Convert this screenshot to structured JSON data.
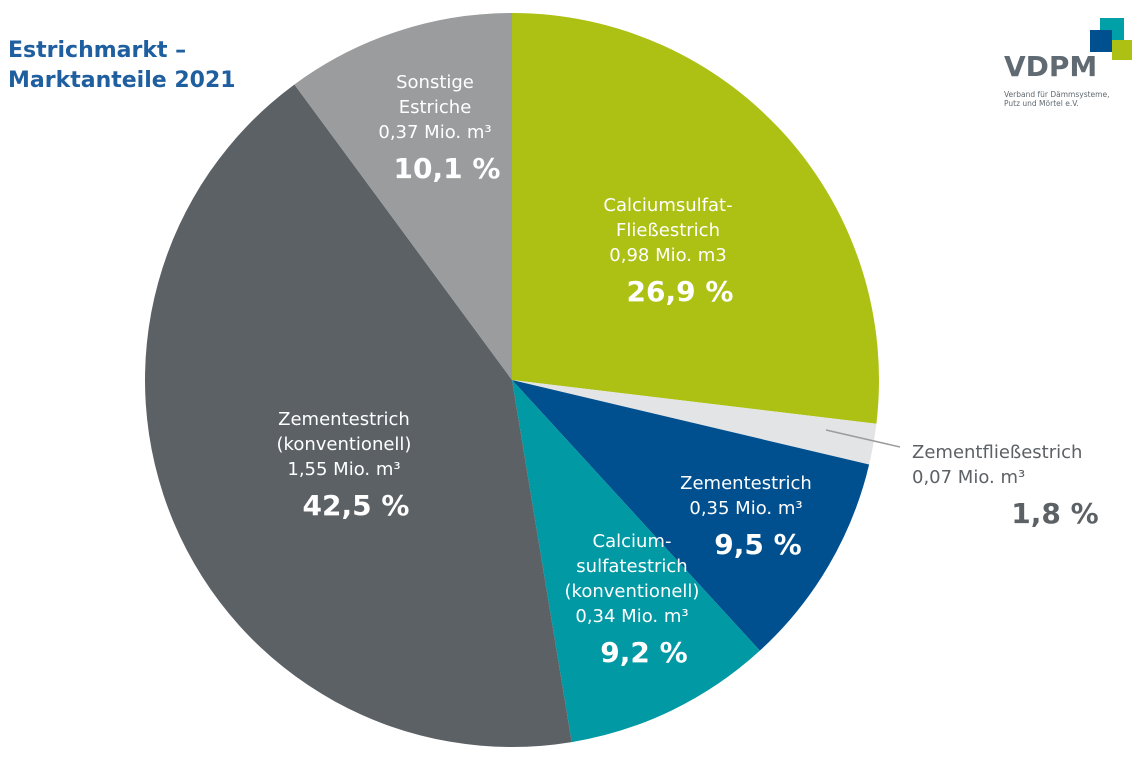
{
  "title": [
    "Estrichmarkt –",
    "Marktanteile 2021"
  ],
  "logo": {
    "name": "VDPM",
    "subtitle": [
      "Verband für Dämmsysteme,",
      "Putz und Mörtel e.V."
    ]
  },
  "chart_data": {
    "type": "pie",
    "unit": "Mio. m³",
    "slices": [
      {
        "label": [
          "Calciumsulfat-",
          "Fließestrich"
        ],
        "volume": "0,98 Mio. m3",
        "value": 26.9,
        "percent": "26,9 %",
        "color": "#acc114",
        "text_color": "#ffffff"
      },
      {
        "label": [
          "Zementfließestrich"
        ],
        "volume": "0,07 Mio. m³",
        "value": 1.8,
        "percent": "1,8 %",
        "color": "#e3e4e5",
        "text_color": "#5c6166"
      },
      {
        "label": [
          "Zementestrich"
        ],
        "volume": "0,35 Mio. m³",
        "value": 9.5,
        "percent": "9,5 %",
        "color": "#00508f",
        "text_color": "#ffffff"
      },
      {
        "label": [
          "Calcium-",
          "sulfatestrich",
          "(konventionell)"
        ],
        "volume": "0,34 Mio. m³",
        "value": 9.2,
        "percent": "9,2 %",
        "color": "#0099a4",
        "text_color": "#ffffff"
      },
      {
        "label": [
          "Zementestrich",
          "(konventionell)"
        ],
        "volume": "1,55 Mio. m³",
        "value": 42.5,
        "percent": "42,5 %",
        "color": "#5c6166",
        "text_color": "#ffffff"
      },
      {
        "label": [
          "Sonstige",
          "Estriche"
        ],
        "volume": "0,37 Mio. m³",
        "value": 10.1,
        "percent": "10,1 %",
        "color": "#9b9c9d",
        "text_color": "#ffffff"
      }
    ]
  }
}
